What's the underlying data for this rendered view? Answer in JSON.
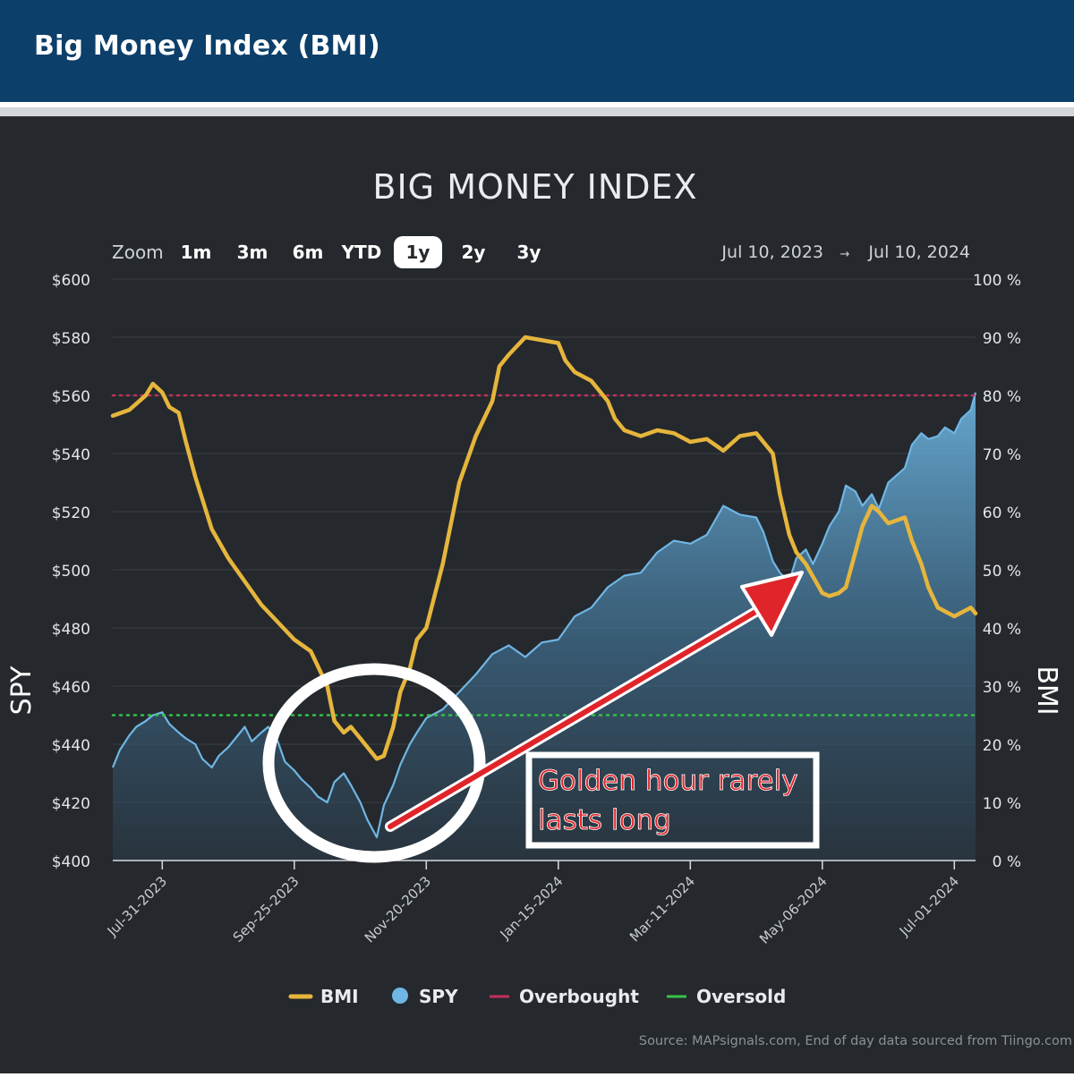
{
  "header": {
    "title": "Big Money Index (BMI)"
  },
  "colors": {
    "header_bg": "#0c3f6a",
    "panel_bg": "#25292d",
    "bmi_line": "#e6b53c",
    "spy_line": "#6fb6e4",
    "overbought": "#c2305a",
    "oversold": "#35c247",
    "annotation": "#e0252a"
  },
  "toolbar": {
    "zoom_label": "Zoom",
    "zoom_options": [
      "1m",
      "3m",
      "6m",
      "YTD",
      "1y",
      "2y",
      "3y"
    ],
    "selected_zoom": "1y",
    "range_start": "Jul 10, 2023",
    "range_arrow": "→",
    "range_end": "Jul 10, 2024"
  },
  "annotation": {
    "line1": "Golden hour rarely",
    "line2": "lasts long"
  },
  "source_note": "Source: MAPsignals.com, End of day data sourced from Tiingo.com",
  "chart_data": {
    "type": "line",
    "title": "BIG MONEY INDEX",
    "xlabel": "",
    "ylabel": "SPY",
    "ylabel_right": "BMI",
    "x_range": [
      "2023-07-10",
      "2024-07-10"
    ],
    "x_ticks": [
      "Jul-31-2023",
      "Sep-25-2023",
      "Nov-20-2023",
      "Jan-15-2024",
      "Mar-11-2024",
      "May-06-2024",
      "Jul-01-2024"
    ],
    "ylim": [
      400,
      600
    ],
    "y_ticks": [
      "$400",
      "$420",
      "$440",
      "$460",
      "$480",
      "$500",
      "$520",
      "$540",
      "$560",
      "$580",
      "$600"
    ],
    "ylim_right": [
      0,
      100
    ],
    "y_ticks_right": [
      "0 %",
      "10 %",
      "20 %",
      "30 %",
      "40 %",
      "50 %",
      "60 %",
      "70 %",
      "80 %",
      "90 %",
      "100 %"
    ],
    "grid": true,
    "legend_position": "bottom",
    "legend": [
      {
        "name": "BMI",
        "marker": "line",
        "color": "#e6b53c"
      },
      {
        "name": "SPY",
        "marker": "dot",
        "color": "#6fb6e4"
      },
      {
        "name": "Overbought",
        "marker": "line",
        "color": "#c2305a"
      },
      {
        "name": "Oversold",
        "marker": "line",
        "color": "#35c247"
      }
    ],
    "reference_lines": [
      {
        "name": "Overbought",
        "axis": "right",
        "value": 80,
        "color": "#c2305a",
        "style": "dotted"
      },
      {
        "name": "Oversold",
        "axis": "right",
        "value": 25,
        "color": "#35c247",
        "style": "dotted"
      }
    ],
    "series": [
      {
        "name": "BMI",
        "axis": "right",
        "color": "#e6b53c",
        "points": [
          [
            "2023-07-10",
            76.5
          ],
          [
            "2023-07-17",
            77.5
          ],
          [
            "2023-07-24",
            80.0
          ],
          [
            "2023-07-27",
            82.0
          ],
          [
            "2023-07-31",
            80.5
          ],
          [
            "2023-08-03",
            78.0
          ],
          [
            "2023-08-07",
            77.0
          ],
          [
            "2023-08-10",
            72.0
          ],
          [
            "2023-08-14",
            66.0
          ],
          [
            "2023-08-21",
            57.0
          ],
          [
            "2023-08-28",
            52.0
          ],
          [
            "2023-09-04",
            48.0
          ],
          [
            "2023-09-11",
            44.0
          ],
          [
            "2023-09-18",
            41.0
          ],
          [
            "2023-09-25",
            38.0
          ],
          [
            "2023-10-02",
            36.0
          ],
          [
            "2023-10-09",
            30.0
          ],
          [
            "2023-10-12",
            24.0
          ],
          [
            "2023-10-16",
            22.0
          ],
          [
            "2023-10-19",
            23.0
          ],
          [
            "2023-10-23",
            21.0
          ],
          [
            "2023-10-30",
            17.5
          ],
          [
            "2023-11-02",
            18.0
          ],
          [
            "2023-11-06",
            23.0
          ],
          [
            "2023-11-09",
            29.0
          ],
          [
            "2023-11-13",
            33.0
          ],
          [
            "2023-11-16",
            38.0
          ],
          [
            "2023-11-20",
            40.0
          ],
          [
            "2023-11-27",
            51.0
          ],
          [
            "2023-12-04",
            65.0
          ],
          [
            "2023-12-11",
            73.0
          ],
          [
            "2023-12-18",
            79.0
          ],
          [
            "2023-12-21",
            85.0
          ],
          [
            "2023-12-25",
            87.0
          ],
          [
            "2024-01-01",
            90.0
          ],
          [
            "2024-01-08",
            89.5
          ],
          [
            "2024-01-15",
            89.0
          ],
          [
            "2024-01-18",
            86.0
          ],
          [
            "2024-01-22",
            84.0
          ],
          [
            "2024-01-29",
            82.5
          ],
          [
            "2024-02-05",
            79.0
          ],
          [
            "2024-02-08",
            76.0
          ],
          [
            "2024-02-12",
            74.0
          ],
          [
            "2024-02-19",
            73.0
          ],
          [
            "2024-02-26",
            74.0
          ],
          [
            "2024-03-04",
            73.5
          ],
          [
            "2024-03-11",
            72.0
          ],
          [
            "2024-03-18",
            72.5
          ],
          [
            "2024-03-25",
            70.5
          ],
          [
            "2024-04-01",
            73.0
          ],
          [
            "2024-04-08",
            73.5
          ],
          [
            "2024-04-15",
            70.0
          ],
          [
            "2024-04-18",
            63.0
          ],
          [
            "2024-04-22",
            56.0
          ],
          [
            "2024-04-25",
            53.0
          ],
          [
            "2024-04-29",
            51.0
          ],
          [
            "2024-05-06",
            46.0
          ],
          [
            "2024-05-09",
            45.5
          ],
          [
            "2024-05-13",
            46.0
          ],
          [
            "2024-05-16",
            47.0
          ],
          [
            "2024-05-20",
            53.0
          ],
          [
            "2024-05-23",
            57.5
          ],
          [
            "2024-05-27",
            61.0
          ],
          [
            "2024-05-30",
            60.0
          ],
          [
            "2024-06-03",
            58.0
          ],
          [
            "2024-06-10",
            59.0
          ],
          [
            "2024-06-13",
            55.0
          ],
          [
            "2024-06-17",
            51.0
          ],
          [
            "2024-06-20",
            47.0
          ],
          [
            "2024-06-24",
            43.5
          ],
          [
            "2024-07-01",
            42.0
          ],
          [
            "2024-07-08",
            43.5
          ],
          [
            "2024-07-10",
            42.5
          ]
        ]
      },
      {
        "name": "SPY",
        "axis": "left",
        "color": "#6fb6e4",
        "points": [
          [
            "2023-07-10",
            432.0
          ],
          [
            "2023-07-13",
            438.0
          ],
          [
            "2023-07-17",
            443.0
          ],
          [
            "2023-07-20",
            446.0
          ],
          [
            "2023-07-24",
            448.0
          ],
          [
            "2023-07-27",
            450.0
          ],
          [
            "2023-07-31",
            451.0
          ],
          [
            "2023-08-03",
            447.0
          ],
          [
            "2023-08-07",
            444.0
          ],
          [
            "2023-08-10",
            442.0
          ],
          [
            "2023-08-14",
            440.0
          ],
          [
            "2023-08-17",
            435.0
          ],
          [
            "2023-08-21",
            432.0
          ],
          [
            "2023-08-24",
            436.0
          ],
          [
            "2023-08-28",
            439.0
          ],
          [
            "2023-08-31",
            442.0
          ],
          [
            "2023-09-04",
            446.0
          ],
          [
            "2023-09-07",
            441.0
          ],
          [
            "2023-09-11",
            444.0
          ],
          [
            "2023-09-14",
            446.0
          ],
          [
            "2023-09-18",
            441.0
          ],
          [
            "2023-09-21",
            434.0
          ],
          [
            "2023-09-25",
            431.0
          ],
          [
            "2023-09-28",
            428.0
          ],
          [
            "2023-10-02",
            425.0
          ],
          [
            "2023-10-05",
            422.0
          ],
          [
            "2023-10-09",
            420.0
          ],
          [
            "2023-10-12",
            427.0
          ],
          [
            "2023-10-16",
            430.0
          ],
          [
            "2023-10-19",
            426.0
          ],
          [
            "2023-10-23",
            420.0
          ],
          [
            "2023-10-26",
            414.0
          ],
          [
            "2023-10-30",
            408.0
          ],
          [
            "2023-11-02",
            419.0
          ],
          [
            "2023-11-06",
            426.0
          ],
          [
            "2023-11-09",
            433.0
          ],
          [
            "2023-11-13",
            440.0
          ],
          [
            "2023-11-16",
            444.0
          ],
          [
            "2023-11-20",
            449.0
          ],
          [
            "2023-11-27",
            452.0
          ],
          [
            "2023-12-04",
            458.0
          ],
          [
            "2023-12-11",
            464.0
          ],
          [
            "2023-12-18",
            471.0
          ],
          [
            "2023-12-25",
            474.0
          ],
          [
            "2024-01-01",
            470.0
          ],
          [
            "2024-01-08",
            475.0
          ],
          [
            "2024-01-15",
            476.0
          ],
          [
            "2024-01-22",
            484.0
          ],
          [
            "2024-01-29",
            487.0
          ],
          [
            "2024-02-05",
            494.0
          ],
          [
            "2024-02-12",
            498.0
          ],
          [
            "2024-02-19",
            499.0
          ],
          [
            "2024-02-26",
            506.0
          ],
          [
            "2024-03-04",
            510.0
          ],
          [
            "2024-03-11",
            509.0
          ],
          [
            "2024-03-18",
            512.0
          ],
          [
            "2024-03-25",
            522.0
          ],
          [
            "2024-04-01",
            519.0
          ],
          [
            "2024-04-08",
            518.0
          ],
          [
            "2024-04-11",
            513.0
          ],
          [
            "2024-04-15",
            503.0
          ],
          [
            "2024-04-18",
            499.0
          ],
          [
            "2024-04-22",
            496.0
          ],
          [
            "2024-04-25",
            504.0
          ],
          [
            "2024-04-29",
            507.0
          ],
          [
            "2024-05-02",
            502.0
          ],
          [
            "2024-05-06",
            509.0
          ],
          [
            "2024-05-09",
            515.0
          ],
          [
            "2024-05-13",
            520.0
          ],
          [
            "2024-05-16",
            529.0
          ],
          [
            "2024-05-20",
            527.0
          ],
          [
            "2024-05-23",
            522.0
          ],
          [
            "2024-05-27",
            526.0
          ],
          [
            "2024-05-30",
            521.0
          ],
          [
            "2024-06-03",
            530.0
          ],
          [
            "2024-06-10",
            535.0
          ],
          [
            "2024-06-13",
            543.0
          ],
          [
            "2024-06-17",
            547.0
          ],
          [
            "2024-06-20",
            545.0
          ],
          [
            "2024-06-24",
            546.0
          ],
          [
            "2024-06-27",
            549.0
          ],
          [
            "2024-07-01",
            547.0
          ],
          [
            "2024-07-04",
            552.0
          ],
          [
            "2024-07-08",
            555.0
          ],
          [
            "2024-07-10",
            561.0
          ]
        ]
      }
    ]
  }
}
